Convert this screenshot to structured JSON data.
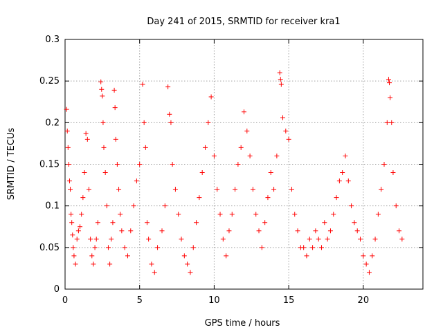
{
  "chart_data": {
    "type": "scatter",
    "title": "Day 241 of 2015, SRMTID for receiver kra1",
    "xlabel": "GPS time / hours",
    "ylabel": "SRMTID / TECUs",
    "xlim": [
      0,
      24
    ],
    "ylim": [
      0,
      0.3
    ],
    "x_ticks": [
      0,
      5,
      10,
      15,
      20
    ],
    "x_tick_labels": [
      "0",
      "5",
      "10",
      "15",
      "20"
    ],
    "y_ticks": [
      0,
      0.05,
      0.1,
      0.15,
      0.2,
      0.25,
      0.3
    ],
    "y_tick_labels": [
      "0",
      "0.05",
      "0.1",
      "0.15",
      "0.2",
      "0.25",
      "0.3"
    ],
    "grid": true,
    "marker": "+",
    "color": "#ff0000",
    "series": [
      {
        "name": "SRMTID",
        "points": [
          [
            0.1,
            0.216
          ],
          [
            0.15,
            0.19
          ],
          [
            0.2,
            0.17
          ],
          [
            0.25,
            0.15
          ],
          [
            0.3,
            0.13
          ],
          [
            0.35,
            0.12
          ],
          [
            0.4,
            0.09
          ],
          [
            0.45,
            0.08
          ],
          [
            0.5,
            0.065
          ],
          [
            0.55,
            0.05
          ],
          [
            0.6,
            0.04
          ],
          [
            0.7,
            0.03
          ],
          [
            0.8,
            0.06
          ],
          [
            0.9,
            0.07
          ],
          [
            1.0,
            0.075
          ],
          [
            1.1,
            0.09
          ],
          [
            1.2,
            0.11
          ],
          [
            1.3,
            0.14
          ],
          [
            1.4,
            0.187
          ],
          [
            1.5,
            0.18
          ],
          [
            1.6,
            0.12
          ],
          [
            1.7,
            0.06
          ],
          [
            1.8,
            0.04
          ],
          [
            1.9,
            0.03
          ],
          [
            2.0,
            0.05
          ],
          [
            2.1,
            0.06
          ],
          [
            2.2,
            0.08
          ],
          [
            2.4,
            0.249
          ],
          [
            2.45,
            0.24
          ],
          [
            2.5,
            0.232
          ],
          [
            2.55,
            0.2
          ],
          [
            2.6,
            0.17
          ],
          [
            2.7,
            0.14
          ],
          [
            2.8,
            0.1
          ],
          [
            2.9,
            0.05
          ],
          [
            3.0,
            0.03
          ],
          [
            3.1,
            0.06
          ],
          [
            3.2,
            0.08
          ],
          [
            3.3,
            0.239
          ],
          [
            3.35,
            0.218
          ],
          [
            3.4,
            0.18
          ],
          [
            3.5,
            0.15
          ],
          [
            3.6,
            0.12
          ],
          [
            3.7,
            0.09
          ],
          [
            3.8,
            0.07
          ],
          [
            4.0,
            0.05
          ],
          [
            4.2,
            0.04
          ],
          [
            4.4,
            0.07
          ],
          [
            4.6,
            0.1
          ],
          [
            4.8,
            0.13
          ],
          [
            5.0,
            0.15
          ],
          [
            5.2,
            0.246
          ],
          [
            5.3,
            0.2
          ],
          [
            5.4,
            0.17
          ],
          [
            5.5,
            0.08
          ],
          [
            5.6,
            0.06
          ],
          [
            5.8,
            0.03
          ],
          [
            6.0,
            0.02
          ],
          [
            6.2,
            0.05
          ],
          [
            6.5,
            0.07
          ],
          [
            6.7,
            0.1
          ],
          [
            6.9,
            0.243
          ],
          [
            7.0,
            0.21
          ],
          [
            7.1,
            0.2
          ],
          [
            7.2,
            0.15
          ],
          [
            7.4,
            0.12
          ],
          [
            7.6,
            0.09
          ],
          [
            7.8,
            0.06
          ],
          [
            8.0,
            0.04
          ],
          [
            8.2,
            0.03
          ],
          [
            8.4,
            0.02
          ],
          [
            8.6,
            0.05
          ],
          [
            8.8,
            0.08
          ],
          [
            9.0,
            0.11
          ],
          [
            9.2,
            0.14
          ],
          [
            9.4,
            0.17
          ],
          [
            9.6,
            0.2
          ],
          [
            9.8,
            0.231
          ],
          [
            10.0,
            0.16
          ],
          [
            10.2,
            0.12
          ],
          [
            10.4,
            0.09
          ],
          [
            10.6,
            0.06
          ],
          [
            10.8,
            0.04
          ],
          [
            11.0,
            0.07
          ],
          [
            11.2,
            0.09
          ],
          [
            11.4,
            0.12
          ],
          [
            11.6,
            0.15
          ],
          [
            11.8,
            0.17
          ],
          [
            12.0,
            0.213
          ],
          [
            12.2,
            0.19
          ],
          [
            12.4,
            0.16
          ],
          [
            12.6,
            0.12
          ],
          [
            12.8,
            0.09
          ],
          [
            13.0,
            0.07
          ],
          [
            13.2,
            0.05
          ],
          [
            13.4,
            0.08
          ],
          [
            13.6,
            0.11
          ],
          [
            13.8,
            0.14
          ],
          [
            14.0,
            0.12
          ],
          [
            14.2,
            0.16
          ],
          [
            14.4,
            0.26
          ],
          [
            14.45,
            0.252
          ],
          [
            14.5,
            0.246
          ],
          [
            14.6,
            0.206
          ],
          [
            14.8,
            0.19
          ],
          [
            15.0,
            0.18
          ],
          [
            15.2,
            0.12
          ],
          [
            15.4,
            0.09
          ],
          [
            15.6,
            0.07
          ],
          [
            15.8,
            0.05
          ],
          [
            16.0,
            0.05
          ],
          [
            16.2,
            0.04
          ],
          [
            16.4,
            0.06
          ],
          [
            16.6,
            0.05
          ],
          [
            16.8,
            0.07
          ],
          [
            17.0,
            0.06
          ],
          [
            17.2,
            0.05
          ],
          [
            17.4,
            0.08
          ],
          [
            17.6,
            0.06
          ],
          [
            17.8,
            0.07
          ],
          [
            18.0,
            0.09
          ],
          [
            18.2,
            0.11
          ],
          [
            18.4,
            0.13
          ],
          [
            18.6,
            0.14
          ],
          [
            18.8,
            0.16
          ],
          [
            19.0,
            0.13
          ],
          [
            19.2,
            0.1
          ],
          [
            19.4,
            0.08
          ],
          [
            19.6,
            0.07
          ],
          [
            19.8,
            0.06
          ],
          [
            20.0,
            0.04
          ],
          [
            20.2,
            0.03
          ],
          [
            20.4,
            0.02
          ],
          [
            20.6,
            0.04
          ],
          [
            20.8,
            0.06
          ],
          [
            21.0,
            0.09
          ],
          [
            21.2,
            0.12
          ],
          [
            21.4,
            0.15
          ],
          [
            21.6,
            0.2
          ],
          [
            21.7,
            0.252
          ],
          [
            21.75,
            0.248
          ],
          [
            21.8,
            0.23
          ],
          [
            21.9,
            0.2
          ],
          [
            22.0,
            0.14
          ],
          [
            22.2,
            0.1
          ],
          [
            22.4,
            0.07
          ],
          [
            22.6,
            0.06
          ]
        ]
      }
    ]
  }
}
